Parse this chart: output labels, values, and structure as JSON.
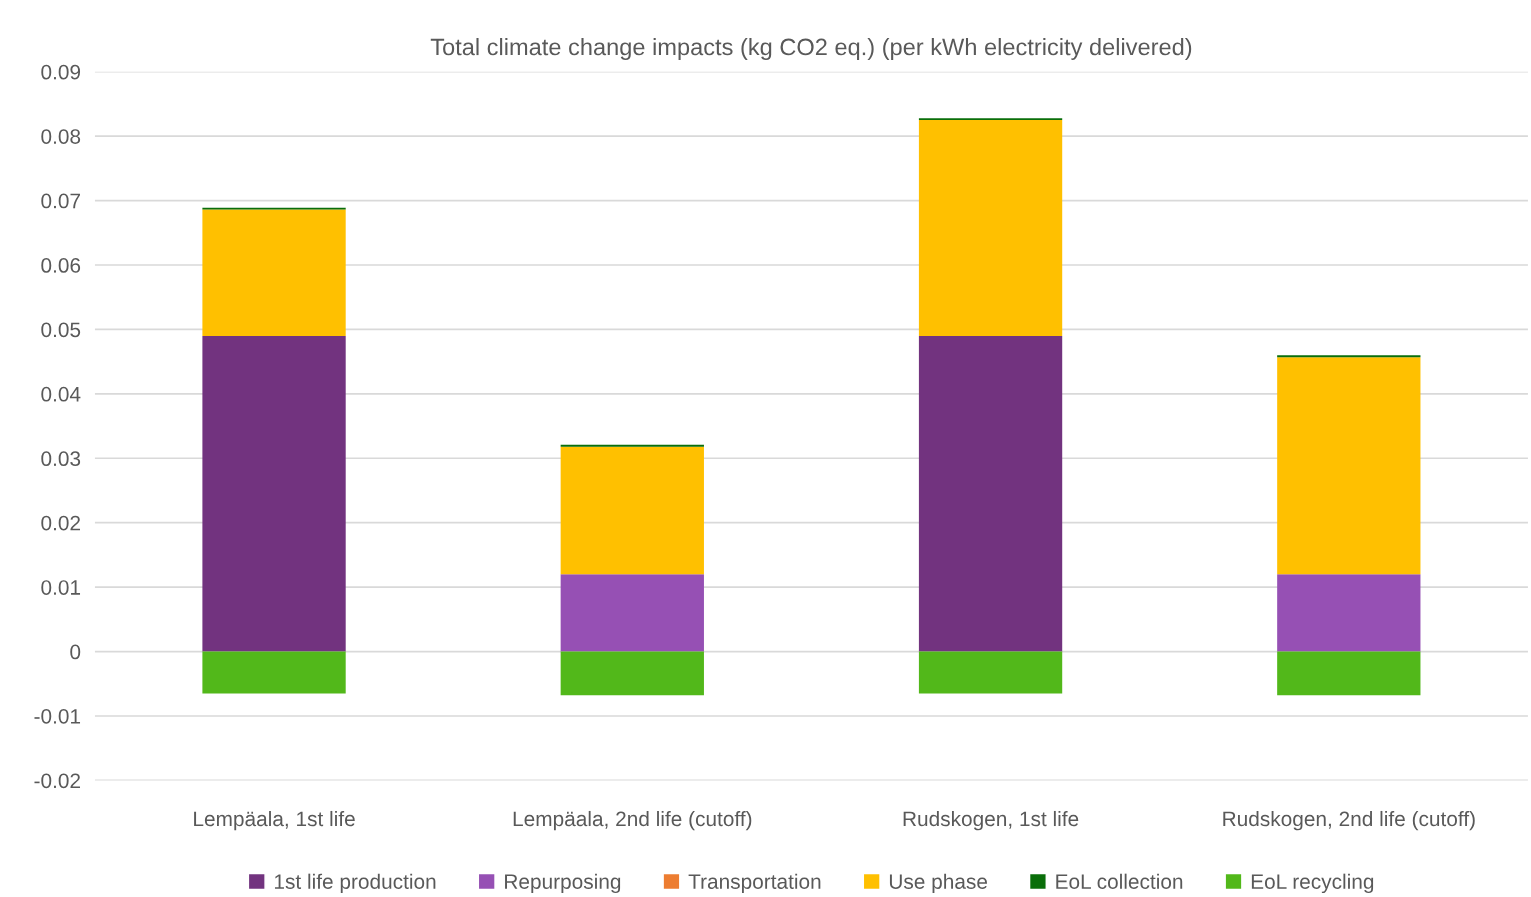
{
  "chart_data": {
    "type": "bar",
    "stacked": true,
    "title": "Total climate change impacts (kg CO2 eq.) (per kWh electricity delivered)",
    "categories": [
      "Lempäala, 1st life",
      "Lempäala, 2nd life (cutoff)",
      "Rudskogen, 1st life",
      "Rudskogen, 2nd life (cutoff)"
    ],
    "series": [
      {
        "name": "1st life production",
        "color": "#72337f",
        "values": [
          0.049,
          0,
          0.049,
          0
        ]
      },
      {
        "name": "Repurposing",
        "color": "#9650b4",
        "values": [
          0,
          0.012,
          0,
          0.012
        ]
      },
      {
        "name": "Transportation",
        "color": "#ed7d31",
        "values": [
          0,
          0,
          0,
          0
        ]
      },
      {
        "name": "Use phase",
        "color": "#ffc000",
        "values": [
          0.0196,
          0.0198,
          0.0335,
          0.0337
        ]
      },
      {
        "name": "EoL collection",
        "color": "#0a6e0a",
        "values": [
          0.0003,
          0.0003,
          0.0003,
          0.0003
        ]
      },
      {
        "name": "EoL recycling",
        "color": "#52b81a",
        "values": [
          -0.0065,
          -0.0068,
          -0.0065,
          -0.0068
        ]
      }
    ],
    "ylim": [
      -0.02,
      0.09
    ],
    "yticks": [
      -0.02,
      -0.01,
      0,
      0.01,
      0.02,
      0.03,
      0.04,
      0.05,
      0.06,
      0.07,
      0.08,
      0.09
    ],
    "grid": "y",
    "legend": "bottom"
  }
}
